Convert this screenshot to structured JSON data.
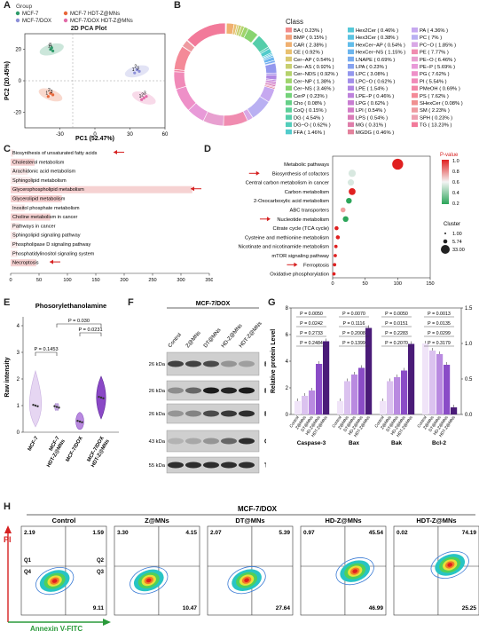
{
  "panels": {
    "A": {
      "label": "A",
      "title": "2D PCA Plot",
      "legend_title": "Group",
      "legend": [
        {
          "name": "MCF-7",
          "color": "#2e9b6a"
        },
        {
          "name": "MCF-7 HDT-Z@MNs",
          "color": "#e8673a"
        },
        {
          "name": "MCF-7/DOX",
          "color": "#8c8fd8"
        },
        {
          "name": "MCF-7/DOX HDT-Z@MNs",
          "color": "#e26aa8"
        }
      ],
      "xlabel": "PC1 (52.47%)",
      "ylabel": "PC2 (20.45%)",
      "xticks": [
        "-30",
        "0",
        "30",
        "60"
      ],
      "yticks": [
        "20",
        "0",
        "-20"
      ]
    },
    "B": {
      "label": "B",
      "legend_title": "Class",
      "classes": [
        {
          "name": "BA ( 0.23% )",
          "color": "#f28b8b"
        },
        {
          "name": "BMP ( 0.15% )",
          "color": "#f2a07a"
        },
        {
          "name": "CAR ( 2.38% )",
          "color": "#f0b070"
        },
        {
          "name": "CE ( 0.92% )",
          "color": "#e8c070"
        },
        {
          "name": "Cer−AP ( 0.54% )",
          "color": "#d8c870"
        },
        {
          "name": "Cer−AS ( 0.92% )",
          "color": "#c8cf70"
        },
        {
          "name": "Cer−NDS ( 0.92% )",
          "color": "#b5d26c"
        },
        {
          "name": "Cer−NP ( 1.38% )",
          "color": "#9fd46c"
        },
        {
          "name": "Cer−NS ( 3.46% )",
          "color": "#88d470"
        },
        {
          "name": "CerP ( 0.23% )",
          "color": "#74d27a"
        },
        {
          "name": "Cho ( 0.08% )",
          "color": "#66d088"
        },
        {
          "name": "CoQ ( 0.15% )",
          "color": "#5ccf98"
        },
        {
          "name": "DG ( 4.54% )",
          "color": "#55ceaa"
        },
        {
          "name": "DG−O ( 0.62% )",
          "color": "#52cdbb"
        },
        {
          "name": "FFA ( 1.46% )",
          "color": "#52cbcb"
        },
        {
          "name": "Hex2Cer ( 0.46% )",
          "color": "#55c8d8"
        },
        {
          "name": "Hex3Cer ( 0.38% )",
          "color": "#5ac3e2"
        },
        {
          "name": "HexCer−AP ( 0.54% )",
          "color": "#62bdea"
        },
        {
          "name": "HexCer−NS ( 1.15% )",
          "color": "#6cb5ee"
        },
        {
          "name": "LNAPE ( 0.69% )",
          "color": "#78acf0"
        },
        {
          "name": "LPA ( 0.23% )",
          "color": "#86a2f0"
        },
        {
          "name": "LPC ( 3.08% )",
          "color": "#9498ee"
        },
        {
          "name": "LPC−O ( 0.62% )",
          "color": "#a38fea"
        },
        {
          "name": "LPE ( 1.54% )",
          "color": "#b188e4"
        },
        {
          "name": "LPE−P ( 0.46% )",
          "color": "#be82dc"
        },
        {
          "name": "LPG ( 0.62% )",
          "color": "#c97ed2"
        },
        {
          "name": "LPI ( 0.54% )",
          "color": "#d27cc6"
        },
        {
          "name": "LPS ( 0.54% )",
          "color": "#d97cb8"
        },
        {
          "name": "MG ( 0.31% )",
          "color": "#df7eaa"
        },
        {
          "name": "MGDG ( 0.46% )",
          "color": "#e3829c"
        },
        {
          "name": "PA ( 4.36% )",
          "color": "#c6a8f0"
        },
        {
          "name": "PC ( 7% )",
          "color": "#b9b0f2"
        },
        {
          "name": "PC−O ( 1.85% )",
          "color": "#d9a8e6"
        },
        {
          "name": "PE ( 7.77% )",
          "color": "#f08cb0"
        },
        {
          "name": "PE−O ( 6.46% )",
          "color": "#e8a0d0"
        },
        {
          "name": "PE−P ( 5.69% )",
          "color": "#e89ad8"
        },
        {
          "name": "PG ( 7.62% )",
          "color": "#ee90c8"
        },
        {
          "name": "PI ( 5.54% )",
          "color": "#f08ab8"
        },
        {
          "name": "PMeOH ( 0.69% )",
          "color": "#f288a8"
        },
        {
          "name": "PS ( 7.62% )",
          "color": "#f48a98"
        },
        {
          "name": "SHexCer ( 0.08% )",
          "color": "#f09090"
        },
        {
          "name": "SM ( 2.23% )",
          "color": "#ee9aa0"
        },
        {
          "name": "SPH ( 0.23% )",
          "color": "#eda0b0"
        },
        {
          "name": "TG ( 13.23% )",
          "color": "#f27a9a"
        }
      ]
    },
    "C": {
      "label": "C",
      "items": [
        {
          "name": "Biosynthesis of unsaturated fatty acids",
          "highlight": false,
          "arrow": true
        },
        {
          "name": "Cholesterol metabolism",
          "highlight": true,
          "arrow": false
        },
        {
          "name": "Arachidonic acid metabolism",
          "highlight": false,
          "arrow": false
        },
        {
          "name": "Sphingolipid metabolism",
          "highlight": false,
          "arrow": false
        },
        {
          "name": "Glycerophospholipid metabolism",
          "highlight": true,
          "arrow": true
        },
        {
          "name": "Glycerolipid metabolism",
          "highlight": true,
          "arrow": false
        },
        {
          "name": "Inositol phosphate metabolism",
          "highlight": false,
          "arrow": false
        },
        {
          "name": "Choline metabolism in cancer",
          "highlight": true,
          "arrow": false
        },
        {
          "name": "Pathways in cancer",
          "highlight": false,
          "arrow": false
        },
        {
          "name": "Sphingolipid signaling pathway",
          "highlight": false,
          "arrow": false
        },
        {
          "name": "Phospholipase D signaling pathway",
          "highlight": false,
          "arrow": false
        },
        {
          "name": "Phosphatidylinositol signaling system",
          "highlight": false,
          "arrow": false
        },
        {
          "name": "Necroptosis",
          "highlight": true,
          "arrow": true
        }
      ],
      "xticks": [
        "0",
        "50",
        "100",
        "150",
        "200",
        "250",
        "300",
        "350"
      ]
    },
    "D": {
      "label": "D",
      "pathways": [
        {
          "name": "Metabolic pathways",
          "arrow": false
        },
        {
          "name": "Biosynthesis of cofactors",
          "arrow": true
        },
        {
          "name": "Central carbon metabolism in cancer",
          "arrow": false
        },
        {
          "name": "Carbon metabolism",
          "arrow": false
        },
        {
          "name": "2-Oxocarboxylic acid metabolism",
          "arrow": false
        },
        {
          "name": "ABC transporters",
          "arrow": false
        },
        {
          "name": "Nucleotide metabolism",
          "arrow": true
        },
        {
          "name": "Citrate cycle (TCA cycle)",
          "arrow": false
        },
        {
          "name": "Cysteine and methionine metabolism",
          "arrow": false
        },
        {
          "name": "Nicotinate and nicotinamide metabolism",
          "arrow": false
        },
        {
          "name": "mTOR signaling pathway",
          "arrow": false
        },
        {
          "name": "Ferroptosis",
          "arrow": true
        },
        {
          "name": "Oxidative phosphorylation",
          "arrow": false
        }
      ],
      "xticks": [
        "0",
        "50",
        "100",
        "150"
      ],
      "pvalue_title": "P-value",
      "pvalue_ticks": [
        "1.0",
        "0.8",
        "0.6",
        "0.4",
        "0.2"
      ],
      "cluster_title": "Cluster",
      "cluster_sizes": [
        "1.00",
        "5.74",
        "33.00"
      ]
    },
    "E": {
      "label": "E",
      "title": "Phosorylethanolamine",
      "ylabel": "Raw intensity",
      "yticks": [
        "4",
        "3",
        "2",
        "1",
        "0"
      ],
      "categories": [
        "MCF-7",
        "MCF-7\nHDT-Z@MNs",
        "MCF-7/DOX",
        "MCF-7/DOX\nHDT-Z@MNs"
      ],
      "pvals": [
        "P = 0.030",
        "P = 0.0231",
        "P = 0.1453"
      ]
    },
    "F": {
      "label": "F",
      "header": "MCF-7/DOX",
      "lanes": [
        "Control",
        "Z@MNs",
        "DT@MNs",
        "HD-Z@MNs",
        "HDT-Z@MNs"
      ],
      "markers": [
        "26 kDa",
        "26 kDa",
        "26 kDa",
        "43 kDa",
        "55 kDa"
      ],
      "proteins": [
        "Bcl-2",
        "Bax",
        "Bak",
        "Caspase-3",
        "Tubulin"
      ]
    },
    "G": {
      "label": "G",
      "ylabel": "Relative protein Level",
      "yticks_left": [
        "8",
        "6",
        "4",
        "2",
        "0"
      ],
      "yticks_right": [
        "1.5",
        "1.0",
        "0.5",
        "0.0"
      ],
      "groups": [
        "Caspase-3",
        "Bax",
        "Bak",
        "Bcl-2"
      ],
      "pvals": [
        [
          "P = 0.0050",
          "P = 0.0242",
          "P = 0.2733",
          "P = 0.2484"
        ],
        [
          "P = 0.0070",
          "P = 0.1116",
          "P = 0.2008",
          "P = 0.1399"
        ],
        [
          "P = 0.0050",
          "P = 0.0151",
          "P = 0.2283",
          "P = 0.2070"
        ],
        [
          "P = 0.0013",
          "P = 0.0135",
          "P = 0.0299",
          "P = 0.3179"
        ]
      ],
      "xlabels": [
        "Control",
        "Z@MNs",
        "DT@MNs",
        "HD-Z@MNs",
        "HDT-Z@MNs"
      ]
    },
    "H": {
      "label": "H",
      "header": "MCF-7/DOX",
      "ylabel": "PI",
      "xlabel": "Annexin V-FITC",
      "quadrant_labels": [
        "Q1",
        "Q2",
        "Q3",
        "Q4"
      ],
      "plots": [
        {
          "name": "Control",
          "q1": "2.19",
          "q2": "1.59",
          "q3": "9.11"
        },
        {
          "name": "Z@MNs",
          "q1": "3.30",
          "q2": "4.15",
          "q3": "10.47"
        },
        {
          "name": "DT@MNs",
          "q1": "2.07",
          "q2": "5.39",
          "q3": "27.64"
        },
        {
          "name": "HD-Z@MNs",
          "q1": "0.97",
          "q2": "45.54",
          "q3": "46.99"
        },
        {
          "name": "HDT-Z@MNs",
          "q1": "0.02",
          "q2": "74.19",
          "q3": "25.25"
        }
      ]
    }
  },
  "chart_data": [
    {
      "type": "scatter",
      "title": "2D PCA Plot",
      "xlabel": "PC1 (52.47%)",
      "ylabel": "PC2 (20.45%)",
      "series": [
        {
          "name": "MCF-7",
          "x": [
            -38,
            -36,
            -37
          ],
          "y": [
            20,
            19,
            21
          ]
        },
        {
          "name": "MCF-7 HDT-Z@MNs",
          "x": [
            -40,
            -38,
            -36
          ],
          "y": [
            -10,
            -8,
            -9
          ]
        },
        {
          "name": "MCF-7/DOX",
          "x": [
            34,
            36,
            38
          ],
          "y": [
            5,
            7,
            6
          ]
        },
        {
          "name": "MCF-7/DOX HDT-Z@MNs",
          "x": [
            40,
            42,
            44
          ],
          "y": [
            -12,
            -11,
            -10
          ]
        }
      ]
    },
    {
      "type": "bar",
      "categories": [
        "Biosynthesis of unsaturated fatty acids",
        "Cholesterol metabolism",
        "Arachidonic acid metabolism",
        "Sphingolipid metabolism",
        "Glycerophospholipid metabolism",
        "Glycerolipid metabolism",
        "Inositol phosphate metabolism",
        "Choline metabolism in cancer",
        "Pathways in cancer",
        "Sphingolipid signaling pathway",
        "Phospholipase D signaling pathway",
        "Phosphatidylinositol signaling system",
        "Necroptosis"
      ],
      "values": [
        5,
        42,
        30,
        38,
        320,
        90,
        25,
        70,
        15,
        10,
        12,
        12,
        45
      ]
    },
    {
      "type": "scatter",
      "categories": [
        "Metabolic pathways",
        "Biosynthesis of cofactors",
        "Central carbon metabolism in cancer",
        "Carbon metabolism",
        "2-Oxocarboxylic acid metabolism",
        "ABC transporters",
        "Nucleotide metabolism",
        "Citrate cycle (TCA cycle)",
        "Cysteine and methionine metabolism",
        "Nicotinate and nicotinamide metabolism",
        "mTOR signaling pathway",
        "Ferroptosis",
        "Oxidative phosphorylation"
      ],
      "x": [
        100,
        30,
        28,
        30,
        25,
        16,
        20,
        6,
        8,
        5,
        4,
        3,
        2
      ],
      "pvalue": [
        1.0,
        0.4,
        0.5,
        0.95,
        0.2,
        0.6,
        0.25,
        0.9,
        0.9,
        0.9,
        0.9,
        0.9,
        0.9
      ],
      "cluster": [
        33,
        12,
        8,
        10,
        6,
        4,
        6,
        2,
        2,
        1,
        1,
        1,
        1
      ]
    },
    {
      "type": "bar",
      "categories": [
        "Control",
        "Z@MNs",
        "DT@MNs",
        "HD-Z@MNs",
        "HDT-Z@MNs"
      ],
      "series": [
        {
          "name": "Caspase-3",
          "values": [
            1.0,
            1.4,
            1.8,
            3.8,
            5.5
          ]
        },
        {
          "name": "Bax",
          "values": [
            1.0,
            2.5,
            3.0,
            3.5,
            6.5
          ]
        },
        {
          "name": "Bak",
          "values": [
            1.0,
            2.5,
            2.8,
            3.3,
            5.3
          ]
        },
        {
          "name": "Bcl-2",
          "values": [
            1.0,
            0.9,
            0.85,
            0.7,
            0.1
          ]
        }
      ]
    }
  ]
}
